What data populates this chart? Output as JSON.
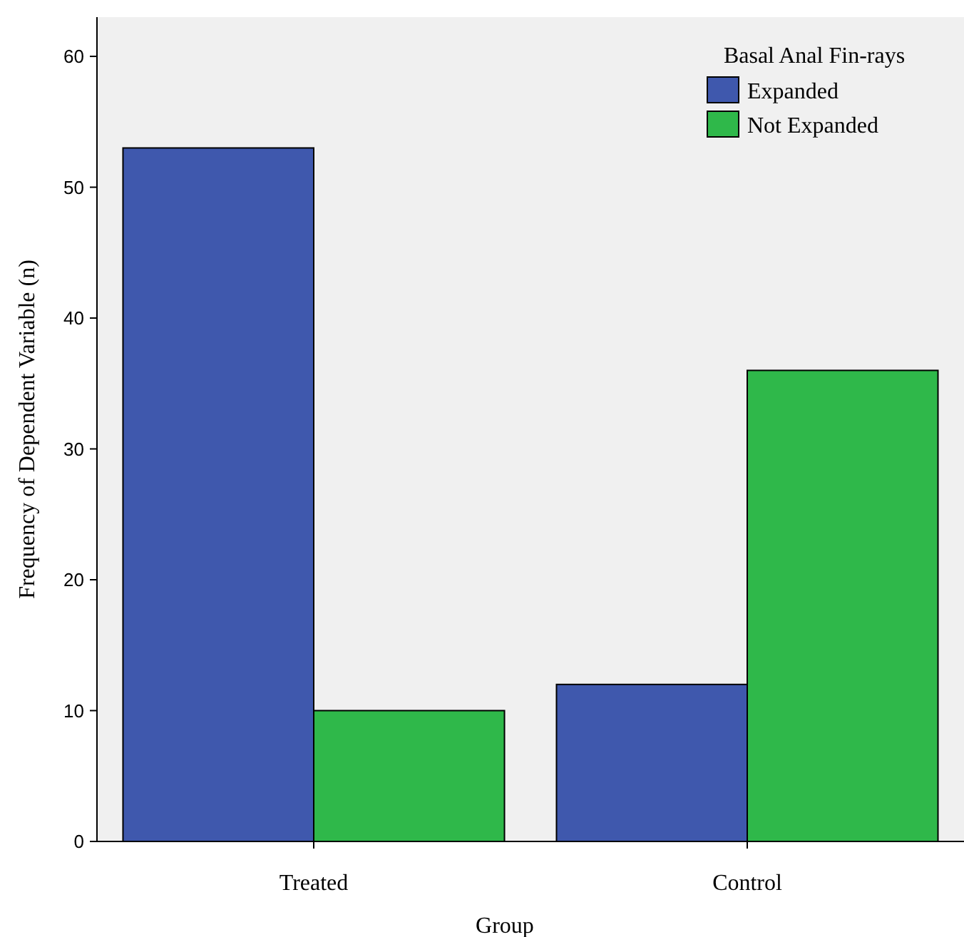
{
  "chart_data": {
    "type": "bar",
    "xlabel": "Group",
    "ylabel": "Frequency of Dependent Variable (n)",
    "legend_title": "Basal Anal Fin-rays",
    "categories": [
      "Treated",
      "Control"
    ],
    "series": [
      {
        "name": "Expanded",
        "color": "#3f58ad",
        "values": [
          53,
          12
        ]
      },
      {
        "name": "Not Expanded",
        "color": "#2fb84a",
        "values": [
          10,
          36
        ]
      }
    ],
    "ylim": [
      0,
      63
    ],
    "yticks": [
      0,
      10,
      20,
      30,
      40,
      50,
      60
    ],
    "grid": false,
    "legend": "top right"
  }
}
